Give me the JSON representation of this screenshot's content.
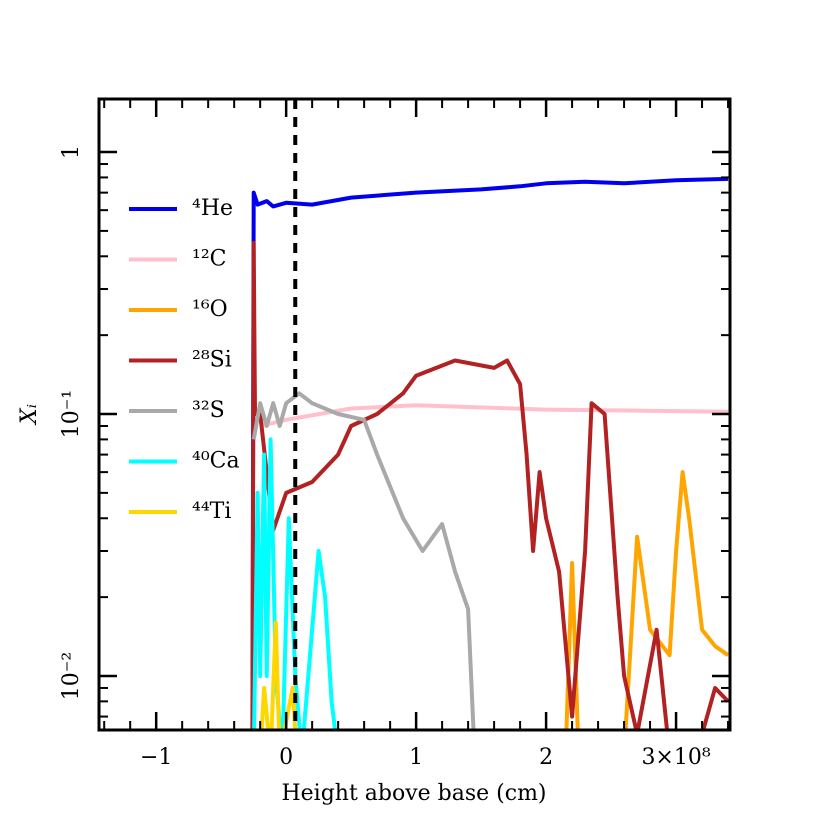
{
  "chart_data": {
    "type": "line",
    "xlabel": "Height above base (cm)",
    "ylabel": "Xᵢ",
    "xlim": [
      -144000000.0,
      341500000.0
    ],
    "ylim": [
      0.00622,
      1.594
    ],
    "yscale": "log",
    "xticks": [
      {
        "value": -100000000.0,
        "label": "−1"
      },
      {
        "value": 0,
        "label": "0"
      },
      {
        "value": 100000000.0,
        "label": "1"
      },
      {
        "value": 200000000.0,
        "label": "2"
      },
      {
        "value": 300000000.0,
        "label": "3×10⁸"
      }
    ],
    "xminorticks": [
      -140000000.0,
      -120000000.0,
      -80000000.0,
      -60000000.0,
      -40000000.0,
      -20000000.0,
      20000000.0,
      40000000.0,
      60000000.0,
      80000000.0,
      120000000.0,
      140000000.0,
      160000000.0,
      180000000.0,
      220000000.0,
      240000000.0,
      260000000.0,
      280000000.0,
      320000000.0,
      340000000.0
    ],
    "yticks": [
      {
        "value": 1,
        "label": "1"
      },
      {
        "value": 0.1,
        "label": "10⁻¹"
      },
      {
        "value": 0.01,
        "label": "10⁻²"
      }
    ],
    "yminorticks": [
      0.007,
      0.008,
      0.009,
      0.02,
      0.03,
      0.04,
      0.05,
      0.06,
      0.07,
      0.08,
      0.09,
      0.2,
      0.3,
      0.4,
      0.5,
      0.6,
      0.7,
      0.8,
      0.9
    ],
    "vline": 7000000.0,
    "legend": "upper left",
    "series": [
      {
        "name": "⁴He",
        "color": "#0000ee",
        "x": [
          -26000000.0,
          -25000000.0,
          -22000000.0,
          -15000000.0,
          -10000000.0,
          0,
          20000000.0,
          50000000.0,
          100000000.0,
          150000000.0,
          180000000.0,
          200000000.0,
          230000000.0,
          260000000.0,
          300000000.0,
          340000000.0
        ],
        "values": [
          0.006,
          0.7,
          0.63,
          0.65,
          0.62,
          0.64,
          0.63,
          0.67,
          0.7,
          0.72,
          0.74,
          0.76,
          0.77,
          0.76,
          0.78,
          0.79
        ]
      },
      {
        "name": "¹²C",
        "color": "#ffc0cb",
        "x": [
          -20000000.0,
          0,
          50000000.0,
          100000000.0,
          200000000.0,
          340000000.0
        ],
        "values": [
          0.09,
          0.095,
          0.105,
          0.108,
          0.104,
          0.102
        ]
      },
      {
        "name": "¹⁶O",
        "color": "#ffa500",
        "x": [
          215000000.0,
          220000000.0,
          225000000.0,
          260000000.0,
          270000000.0,
          280000000.0,
          295000000.0,
          300000000.0,
          305000000.0,
          310000000.0,
          320000000.0,
          330000000.0,
          340000000.0
        ],
        "values": [
          0.005,
          0.027,
          0.005,
          0.005,
          0.034,
          0.015,
          0.012,
          0.03,
          0.06,
          0.04,
          0.015,
          0.013,
          0.012
        ]
      },
      {
        "name": "²⁸Si",
        "color": "#b22222",
        "x": [
          -26000000.0,
          -25000000.0,
          -24000000.0,
          -20000000.0,
          -10000000.0,
          0,
          20000000.0,
          40000000.0,
          50000000.0,
          70000000.0,
          90000000.0,
          100000000.0,
          130000000.0,
          160000000.0,
          170000000.0,
          180000000.0,
          185000000.0,
          190000000.0,
          195000000.0,
          200000000.0,
          210000000.0,
          220000000.0,
          230000000.0,
          235000000.0,
          245000000.0,
          255000000.0,
          260000000.0,
          270000000.0,
          285000000.0,
          295000000.0,
          320000000.0,
          330000000.0,
          340000000.0
        ],
        "values": [
          0.005,
          0.45,
          0.1,
          0.1,
          0.036,
          0.05,
          0.055,
          0.07,
          0.09,
          0.1,
          0.12,
          0.14,
          0.16,
          0.15,
          0.16,
          0.13,
          0.07,
          0.03,
          0.06,
          0.04,
          0.025,
          0.007,
          0.03,
          0.11,
          0.1,
          0.02,
          0.01,
          0.006,
          0.015,
          0.005,
          0.006,
          0.009,
          0.008
        ]
      },
      {
        "name": "³²S",
        "color": "#a9a9a9",
        "x": [
          -25000000.0,
          -20000000.0,
          -15000000.0,
          -10000000.0,
          -5000000.0,
          0,
          10000000.0,
          20000000.0,
          40000000.0,
          60000000.0,
          70000000.0,
          90000000.0,
          105000000.0,
          120000000.0,
          130000000.0,
          140000000.0,
          145000000.0
        ],
        "values": [
          0.08,
          0.11,
          0.09,
          0.11,
          0.09,
          0.11,
          0.12,
          0.11,
          0.1,
          0.095,
          0.07,
          0.04,
          0.03,
          0.038,
          0.025,
          0.018,
          0.005
        ]
      },
      {
        "name": "⁴⁰Ca",
        "color": "#00ffff",
        "x": [
          -25000000.0,
          -22000000.0,
          -20000000.0,
          -17000000.0,
          -15000000.0,
          -12000000.0,
          -8000000.0,
          -3000000.0,
          2000000.0,
          7000000.0,
          12000000.0,
          20000000.0,
          25000000.0,
          30000000.0,
          35000000.0,
          40000000.0
        ],
        "values": [
          0.005,
          0.05,
          0.01,
          0.07,
          0.01,
          0.08,
          0.01,
          0.005,
          0.04,
          0.01,
          0.005,
          0.015,
          0.03,
          0.02,
          0.008,
          0.005
        ]
      },
      {
        "name": "⁴⁴Ti",
        "color": "#ffd700",
        "x": [
          -20000000.0,
          -17000000.0,
          -12000000.0,
          -8000000.0,
          -5000000.0,
          5000000.0,
          8000000.0
        ],
        "values": [
          0.005,
          0.009,
          0.005,
          0.016,
          0.005,
          0.009,
          0.005
        ]
      }
    ]
  }
}
